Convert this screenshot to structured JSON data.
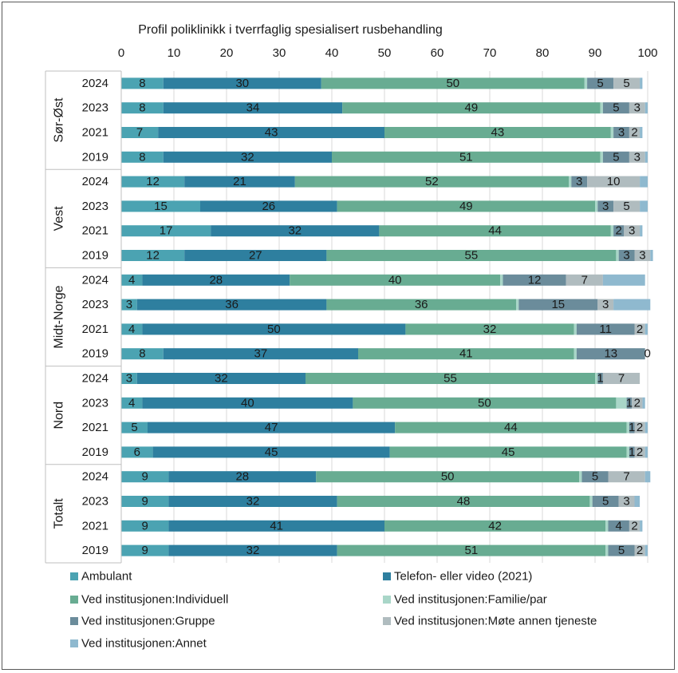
{
  "chart_data": {
    "type": "bar",
    "orientation": "horizontal",
    "stacked": true,
    "title": "Profil poliklinikk i tverrfaglig spesialisert rusbehandling",
    "xlim": [
      0,
      100
    ],
    "x_ticks": [
      "0",
      "10",
      "20",
      "30",
      "40",
      "50",
      "60",
      "70",
      "80",
      "90",
      "100"
    ],
    "x_axis_position": "top",
    "legend_position": "bottom",
    "groups": [
      {
        "name": "Sør-Øst",
        "years": [
          "2024",
          "2023",
          "2021",
          "2019"
        ]
      },
      {
        "name": "Vest",
        "years": [
          "2024",
          "2023",
          "2021",
          "2019"
        ]
      },
      {
        "name": "Midt-Norge",
        "years": [
          "2024",
          "2023",
          "2021",
          "2019"
        ]
      },
      {
        "name": "Nord",
        "years": [
          "2024",
          "2023",
          "2021",
          "2019"
        ]
      },
      {
        "name": "Totalt",
        "years": [
          "2024",
          "2023",
          "2021",
          "2019"
        ]
      }
    ],
    "series": [
      {
        "name": "Ambulant",
        "color": "#4ba3b2",
        "values": [
          8,
          8,
          7,
          8,
          12,
          15,
          17,
          12,
          4,
          3,
          4,
          8,
          3,
          4,
          5,
          6,
          9,
          9,
          9,
          9
        ]
      },
      {
        "name": "Telefon- eller video (2021)",
        "color": "#2e7f9f",
        "values": [
          30,
          34,
          43,
          32,
          21,
          26,
          32,
          27,
          28,
          36,
          50,
          37,
          32,
          40,
          47,
          45,
          28,
          32,
          41,
          32
        ]
      },
      {
        "name": "Ved institusjonen:Individuell",
        "color": "#68ac92",
        "values": [
          50,
          49,
          43,
          51,
          52,
          49,
          44,
          55,
          40,
          36,
          32,
          41,
          55,
          50,
          44,
          45,
          50,
          48,
          42,
          51
        ]
      },
      {
        "name": "Ved institusjonen:Familie/par",
        "color": "#a9d6c8",
        "values": [
          0.5,
          0.5,
          0.5,
          0.5,
          0.5,
          0.5,
          0.5,
          0.5,
          0.5,
          0.5,
          0.5,
          0.5,
          0.5,
          2,
          0.5,
          0.5,
          0.5,
          0.5,
          0.5,
          0.5
        ]
      },
      {
        "name": "Ved institusjonen:Gruppe",
        "color": "#6b8c9b",
        "values": [
          5,
          5,
          3,
          5,
          3,
          3,
          2,
          3,
          12,
          15,
          11,
          13,
          1,
          1,
          1,
          1,
          5,
          5,
          4,
          5
        ]
      },
      {
        "name": "Ved institusjonen:Møte annen tjeneste",
        "color": "#b0bcbf",
        "values": [
          5,
          3,
          2,
          3,
          10,
          5,
          3,
          3,
          7,
          3,
          2,
          0,
          7,
          2,
          2,
          2,
          7,
          3,
          2,
          2
        ]
      },
      {
        "name": "Ved institusjonen:Annet",
        "color": "#8fb9cf",
        "values": [
          0.5,
          0.5,
          0.5,
          0.5,
          1.5,
          1.5,
          0.5,
          0.5,
          8,
          7,
          0.5,
          0,
          0,
          0.5,
          0.5,
          0.5,
          1,
          1,
          0.5,
          0.5
        ]
      }
    ],
    "data_labels": [
      [
        "8",
        "30",
        "50",
        "",
        "5",
        "5",
        ""
      ],
      [
        "8",
        "34",
        "49",
        "",
        "5",
        "3",
        ""
      ],
      [
        "7",
        "43",
        "43",
        "",
        "3",
        "2",
        ""
      ],
      [
        "8",
        "32",
        "51",
        "",
        "5",
        "3",
        ""
      ],
      [
        "12",
        "21",
        "52",
        "",
        "3",
        "10",
        ""
      ],
      [
        "15",
        "26",
        "49",
        "",
        "3",
        "5",
        ""
      ],
      [
        "17",
        "32",
        "44",
        "",
        "2",
        "3",
        ""
      ],
      [
        "12",
        "27",
        "55",
        "",
        "3",
        "3",
        ""
      ],
      [
        "4",
        "28",
        "40",
        "",
        "12",
        "7",
        ""
      ],
      [
        "3",
        "36",
        "36",
        "",
        "15",
        "3",
        ""
      ],
      [
        "4",
        "50",
        "32",
        "",
        "11",
        "2",
        ""
      ],
      [
        "8",
        "37",
        "41",
        "",
        "13",
        "0",
        ""
      ],
      [
        "3",
        "32",
        "55",
        "",
        "1",
        "7",
        ""
      ],
      [
        "4",
        "40",
        "50",
        "",
        "1",
        "2",
        ""
      ],
      [
        "5",
        "47",
        "44",
        "",
        "1",
        "2",
        ""
      ],
      [
        "6",
        "45",
        "45",
        "",
        "1",
        "2",
        ""
      ],
      [
        "9",
        "28",
        "50",
        "",
        "5",
        "7",
        ""
      ],
      [
        "9",
        "32",
        "48",
        "",
        "5",
        "3",
        ""
      ],
      [
        "9",
        "41",
        "42",
        "",
        "4",
        "2",
        ""
      ],
      [
        "9",
        "32",
        "51",
        "",
        "5",
        "2",
        ""
      ]
    ],
    "legend": [
      "Ambulant",
      "Telefon- eller video (2021)",
      "Ved institusjonen:Individuell",
      "Ved institusjonen:Familie/par",
      "Ved institusjonen:Gruppe",
      "Ved institusjonen:Møte annen tjeneste",
      "Ved institusjonen:Annet"
    ]
  }
}
